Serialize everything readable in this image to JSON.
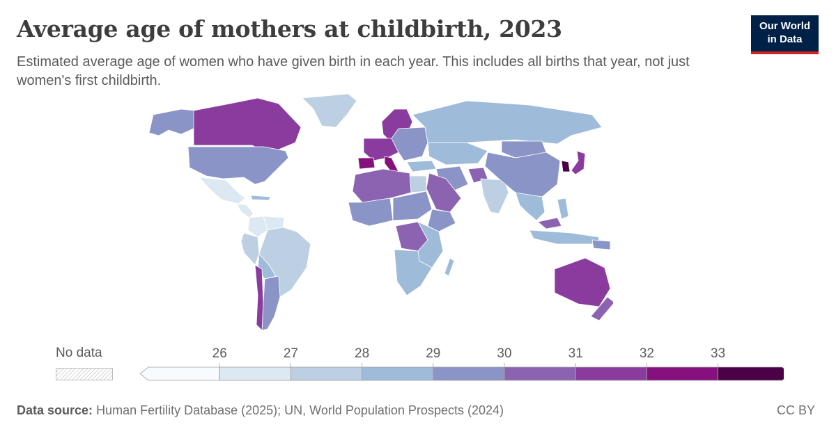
{
  "header": {
    "title": "Average age of mothers at childbirth, 2023",
    "subtitle": "Estimated average age of women who have given birth in each year. This includes all births that year, not just women's first childbirth."
  },
  "logo": {
    "line1": "Our World",
    "line2": "in Data"
  },
  "legend": {
    "no_data_label": "No data",
    "ticks": [
      "26",
      "27",
      "28",
      "29",
      "30",
      "31",
      "32",
      "33"
    ],
    "colors": [
      "#f7fbfd",
      "#dce9f3",
      "#bccfe3",
      "#9fbbda",
      "#8a94c6",
      "#8c63b0",
      "#8a3c9e",
      "#86107d",
      "#4a0045"
    ]
  },
  "footer": {
    "source_label": "Data source:",
    "source_text": "Human Fertility Database (2025); UN, World Population Prospects (2024)",
    "license": "CC BY"
  },
  "map": {
    "regions": [
      {
        "name": "Canada",
        "color": "#8a3c9e"
      },
      {
        "name": "Greenland",
        "color": "#bccfe3"
      },
      {
        "name": "Alaska",
        "color": "#8a94c6"
      },
      {
        "name": "United States",
        "color": "#8a94c6"
      },
      {
        "name": "Mexico",
        "color": "#dce9f3"
      },
      {
        "name": "Central America",
        "color": "#dce9f3"
      },
      {
        "name": "Cuba",
        "color": "#9fbbda"
      },
      {
        "name": "Colombia",
        "color": "#dce9f3"
      },
      {
        "name": "Venezuela",
        "color": "#dce9f3"
      },
      {
        "name": "Brazil",
        "color": "#bccfe3"
      },
      {
        "name": "Peru",
        "color": "#bccfe3"
      },
      {
        "name": "Bolivia",
        "color": "#9fbbda"
      },
      {
        "name": "Argentina",
        "color": "#8a94c6"
      },
      {
        "name": "Chile",
        "color": "#8a3c9e"
      },
      {
        "name": "Scandinavia",
        "color": "#8a3c9e"
      },
      {
        "name": "Western Europe",
        "color": "#8a3c9e"
      },
      {
        "name": "Spain",
        "color": "#86107d"
      },
      {
        "name": "Italy",
        "color": "#86107d"
      },
      {
        "name": "Eastern Europe",
        "color": "#8a94c6"
      },
      {
        "name": "Russia",
        "color": "#9fbbda"
      },
      {
        "name": "Kazakhstan",
        "color": "#9fbbda"
      },
      {
        "name": "Turkey",
        "color": "#9fbbda"
      },
      {
        "name": "Iran",
        "color": "#8a94c6"
      },
      {
        "name": "Afghanistan",
        "color": "#8c63b0"
      },
      {
        "name": "India",
        "color": "#bccfe3"
      },
      {
        "name": "China",
        "color": "#8a94c6"
      },
      {
        "name": "Mongolia",
        "color": "#8a94c6"
      },
      {
        "name": "Korea",
        "color": "#4a0045"
      },
      {
        "name": "Japan",
        "color": "#8a3c9e"
      },
      {
        "name": "Southeast Asia",
        "color": "#9fbbda"
      },
      {
        "name": "Malaysia",
        "color": "#8c63b0"
      },
      {
        "name": "Indonesia",
        "color": "#9fbbda"
      },
      {
        "name": "Philippines",
        "color": "#9fbbda"
      },
      {
        "name": "Arabian Peninsula",
        "color": "#8c63b0"
      },
      {
        "name": "Egypt",
        "color": "#bccfe3"
      },
      {
        "name": "North Africa",
        "color": "#8c63b0"
      },
      {
        "name": "West Africa",
        "color": "#8a94c6"
      },
      {
        "name": "Sahel",
        "color": "#8a94c6"
      },
      {
        "name": "Ethiopia",
        "color": "#8a94c6"
      },
      {
        "name": "DR Congo",
        "color": "#8c63b0"
      },
      {
        "name": "East Africa",
        "color": "#9fbbda"
      },
      {
        "name": "Southern Africa",
        "color": "#9fbbda"
      },
      {
        "name": "Madagascar",
        "color": "#9fbbda"
      },
      {
        "name": "Australia",
        "color": "#8a3c9e"
      },
      {
        "name": "New Zealand",
        "color": "#8c63b0"
      },
      {
        "name": "Papua New Guinea",
        "color": "#8a94c6"
      }
    ]
  }
}
